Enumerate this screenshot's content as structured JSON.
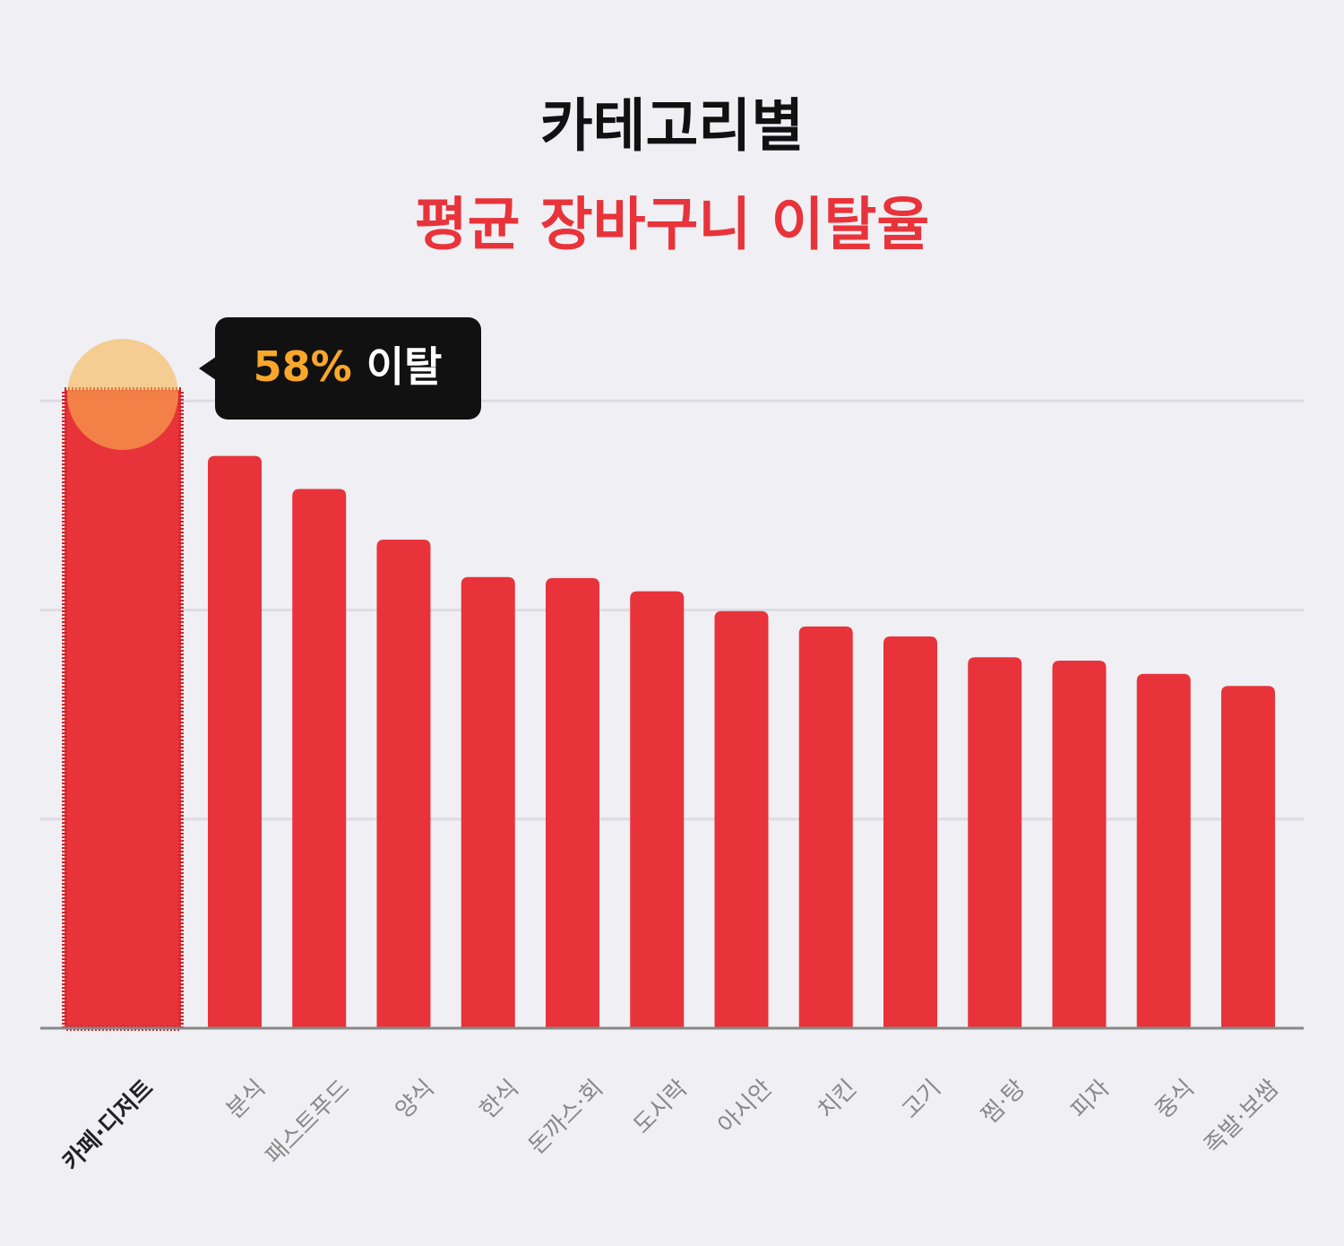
{
  "chart_data": {
    "type": "bar",
    "title": "카테고리별",
    "subtitle": "평균 장바구니 이탈율",
    "categories": [
      "카페·디저트",
      "분식",
      "패스트푸드",
      "양식",
      "한식",
      "돈까스·회",
      "도시락",
      "아시안",
      "치킨",
      "고기",
      "찜·탕",
      "피자",
      "중식",
      "족발·보쌈"
    ],
    "values": [
      58,
      52.0,
      49.0,
      44.4,
      41.0,
      40.9,
      39.7,
      37.9,
      36.5,
      35.6,
      33.7,
      33.4,
      32.2,
      31.1
    ],
    "color": "#e8333a",
    "highlight_color": "#d0242b",
    "highlight_index": 0,
    "annotation": {
      "value_label": "58%",
      "text": "이탈"
    },
    "ylim": [
      0,
      58
    ],
    "yticks": [
      19,
      38,
      57
    ],
    "grid": true
  }
}
